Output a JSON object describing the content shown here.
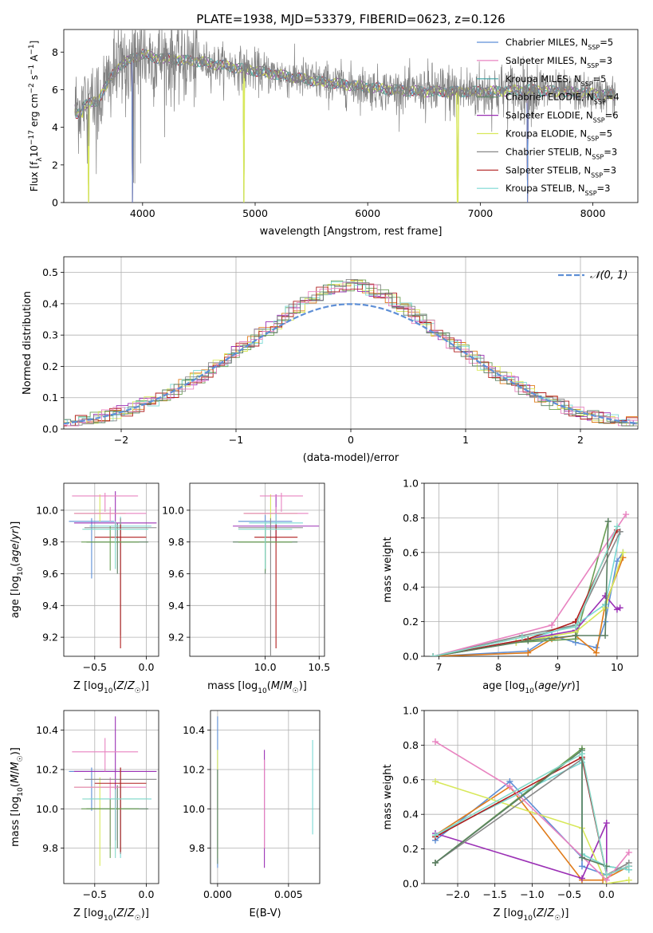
{
  "figure": {
    "title": "PLATE=1938, MJD=53379, FIBERID=0623, z=0.126"
  },
  "colors": {
    "series": [
      "#5e8fd6",
      "#e07b1a",
      "#6b9f55",
      "#9b30b5",
      "#d8e85a",
      "#7ad9d4",
      "#888888",
      "#b01e1e",
      "#e883c0",
      "#5a7f62",
      "#86d9c9"
    ],
    "grid": "#b0b0b0",
    "normal_curve": "#5e8fd6"
  },
  "chart_data": [
    {
      "id": "spectrum",
      "type": "line",
      "xlabel": "wavelength [Angstrom, rest frame]",
      "ylabel": "Flux [f_λ 10^-17 erg cm^-2 s^-1 A^-1]",
      "xlim": [
        3300,
        8400
      ],
      "ylim": [
        0,
        9.2
      ],
      "xticks": [
        4000,
        5000,
        6000,
        7000,
        8000
      ],
      "yticks": [
        0,
        2,
        4,
        6,
        8
      ],
      "grid": false,
      "legend_position": "top-right",
      "continuum": {
        "x": [
          3400,
          3500,
          3600,
          3700,
          3800,
          3900,
          4000,
          4100,
          4300,
          4500,
          4700,
          5000,
          5300,
          5600,
          5900,
          6200,
          6500,
          6800,
          7100,
          7400,
          7700,
          8000,
          8200
        ],
        "y": [
          5.0,
          5.2,
          5.4,
          6.5,
          7.3,
          7.6,
          7.9,
          7.7,
          7.6,
          7.5,
          7.3,
          7.0,
          6.7,
          6.4,
          6.2,
          6.0,
          5.9,
          5.9,
          5.9,
          6.0,
          5.9,
          5.8,
          5.7
        ]
      },
      "dips": [
        {
          "x": 3520,
          "y": 0
        },
        {
          "x": 3910,
          "y": 0
        },
        {
          "x": 4900,
          "y": 0
        },
        {
          "x": 6800,
          "y": 0
        },
        {
          "x": 7420,
          "y": 0
        }
      ],
      "legend": [
        {
          "prefix": "Chabrier MILES, N",
          "sub": "SSP",
          "suffix": "=5"
        },
        {
          "prefix": "Salpeter MILES, N",
          "sub": "SSP",
          "suffix": "=3"
        },
        {
          "prefix": "Kroupa MILES, N",
          "sub": "SSP",
          "suffix": "=5"
        },
        {
          "prefix": "Chabrier ELODIE, N",
          "sub": "SSP",
          "suffix": "=4"
        },
        {
          "prefix": "Salpeter ELODIE, N",
          "sub": "SSP",
          "suffix": "=6"
        },
        {
          "prefix": "Kroupa ELODIE, N",
          "sub": "SSP",
          "suffix": "=5"
        },
        {
          "prefix": "Chabrier STELIB, N",
          "sub": "SSP",
          "suffix": "=3"
        },
        {
          "prefix": "Salpeter STELIB, N",
          "sub": "SSP",
          "suffix": "=3"
        },
        {
          "prefix": "Kroupa STELIB, N",
          "sub": "SSP",
          "suffix": "=3"
        }
      ]
    },
    {
      "id": "residuals",
      "type": "histogram",
      "xlabel": "(data-model)/error",
      "ylabel": "Normed distribution",
      "xlim": [
        -2.5,
        2.5
      ],
      "ylim": [
        0,
        0.55
      ],
      "xticks": [
        -2,
        -1,
        0,
        1,
        2
      ],
      "yticks": [
        0.0,
        0.1,
        0.2,
        0.3,
        0.4,
        0.5
      ],
      "grid": true,
      "legend_position": "top-right",
      "legend": [
        {
          "label": "𝒩(0, 1)"
        }
      ],
      "bin_width": 0.1
    },
    {
      "id": "age-vs-Z",
      "type": "errorbar",
      "xlabel": "Z [log10(Z/Z☉)]",
      "ylabel": "age [log10(age/yr)]",
      "xlim": [
        -0.8,
        0.12
      ],
      "ylim": [
        9.08,
        10.17
      ],
      "xticks": [
        -0.5,
        0.0
      ],
      "yticks": [
        9.2,
        9.4,
        9.6,
        9.8,
        10.0
      ],
      "grid": true,
      "points": [
        {
          "x": -0.53,
          "y": 9.93,
          "xerr": 0.22,
          "yerr_lo": 0.36,
          "yerr_hi": 0.02
        },
        {
          "x": -0.45,
          "y": 9.98,
          "xerr": 0.25,
          "yerr_lo": 0.05,
          "yerr_hi": 0.12
        },
        {
          "x": -0.28,
          "y": 9.8,
          "xerr": 0.3,
          "yerr_lo": 0.2,
          "yerr_hi": 0.12
        },
        {
          "x": -0.3,
          "y": 9.92,
          "xerr": 0.4,
          "yerr_lo": 0.1,
          "yerr_hi": 0.2
        },
        {
          "x": -0.35,
          "y": 9.98,
          "xerr": 0.35,
          "yerr_lo": 0.05,
          "yerr_hi": 0.04
        },
        {
          "x": -0.25,
          "y": 9.9,
          "xerr": 0.3,
          "yerr_lo": 0.05,
          "yerr_hi": 0.06
        },
        {
          "x": -0.25,
          "y": 9.89,
          "xerr": 0.35,
          "yerr_lo": 0.68,
          "yerr_hi": 0.06
        },
        {
          "x": -0.25,
          "y": 9.83,
          "xerr": 0.25,
          "yerr_lo": 0.7,
          "yerr_hi": 0.08
        },
        {
          "x": -0.4,
          "y": 10.09,
          "xerr": 0.32,
          "yerr_lo": 0.1,
          "yerr_hi": 0.02
        },
        {
          "x": -0.35,
          "y": 9.8,
          "xerr": 0.28,
          "yerr_lo": 0.18,
          "yerr_hi": 0.1
        },
        {
          "x": -0.3,
          "y": 9.88,
          "xerr": 0.32,
          "yerr_lo": 0.25,
          "yerr_hi": 0.05
        }
      ]
    },
    {
      "id": "age-vs-mass",
      "type": "errorbar",
      "xlabel": "mass [log10(M/M☉)]",
      "ylabel": "",
      "xlim": [
        9.3,
        10.55
      ],
      "ylim": [
        9.08,
        10.17
      ],
      "xticks": [
        10.0,
        10.5
      ],
      "yticks": [
        9.2,
        9.4,
        9.6,
        9.8,
        10.0
      ],
      "grid": true,
      "points": [
        {
          "x": 10.0,
          "y": 9.93,
          "xerr": 0.25,
          "yerr_lo": 0.1,
          "yerr_hi": 0.04
        },
        {
          "x": 10.05,
          "y": 9.98,
          "xerr": 0.25,
          "yerr_lo": 0.05,
          "yerr_hi": 0.12
        },
        {
          "x": 10.0,
          "y": 9.8,
          "xerr": 0.3,
          "yerr_lo": 0.2,
          "yerr_hi": 0.12
        },
        {
          "x": 10.1,
          "y": 9.9,
          "xerr": 0.4,
          "yerr_lo": 0.1,
          "yerr_hi": 0.2
        },
        {
          "x": 10.1,
          "y": 9.98,
          "xerr": 0.3,
          "yerr_lo": 0.05,
          "yerr_hi": 0.04
        },
        {
          "x": 10.1,
          "y": 9.92,
          "xerr": 0.25,
          "yerr_lo": 0.05,
          "yerr_hi": 0.06
        },
        {
          "x": 10.05,
          "y": 9.89,
          "xerr": 0.3,
          "yerr_lo": 0.82,
          "yerr_hi": 0.06
        },
        {
          "x": 10.1,
          "y": 9.83,
          "xerr": 0.2,
          "yerr_lo": 0.7,
          "yerr_hi": 0.08
        },
        {
          "x": 10.15,
          "y": 10.09,
          "xerr": 0.2,
          "yerr_lo": 0.1,
          "yerr_hi": 0.02
        },
        {
          "x": 10.0,
          "y": 9.8,
          "xerr": 0.25,
          "yerr_lo": 0.18,
          "yerr_hi": 0.1
        },
        {
          "x": 10.0,
          "y": 9.88,
          "xerr": 0.25,
          "yerr_lo": 0.25,
          "yerr_hi": 0.05
        }
      ]
    },
    {
      "id": "mass-weight-vs-age",
      "type": "line",
      "xlabel": "age [log10(age/yr)]",
      "ylabel": "mass weight",
      "xlim": [
        6.75,
        10.35
      ],
      "ylim": [
        0,
        1.0
      ],
      "xticks": [
        7,
        8,
        9,
        10
      ],
      "yticks": [
        0.0,
        0.2,
        0.4,
        0.6,
        0.8,
        1.0
      ],
      "grid": true,
      "series": [
        {
          "x": [
            6.9,
            8.5,
            8.9,
            9.3,
            9.65,
            9.8,
            10.0,
            10.1
          ],
          "y": [
            0.0,
            0.03,
            0.12,
            0.08,
            0.05,
            0.2,
            0.55,
            0.6
          ]
        },
        {
          "x": [
            6.9,
            8.5,
            8.9,
            9.3,
            9.65,
            9.8,
            10.1
          ],
          "y": [
            0.0,
            0.02,
            0.1,
            0.12,
            0.02,
            0.3,
            0.57
          ]
        },
        {
          "x": [
            6.9,
            8.3,
            9.3,
            9.85
          ],
          "y": [
            0.0,
            0.08,
            0.1,
            0.78
          ]
        },
        {
          "x": [
            6.9,
            8.5,
            9.3,
            9.8,
            10.0,
            10.05
          ],
          "y": [
            0.0,
            0.1,
            0.15,
            0.35,
            0.27,
            0.28
          ]
        },
        {
          "x": [
            6.9,
            8.3,
            9.3,
            9.8,
            10.1
          ],
          "y": [
            0.0,
            0.08,
            0.14,
            0.28,
            0.6
          ]
        },
        {
          "x": [
            6.9,
            8.5,
            9.3,
            9.8,
            10.05
          ],
          "y": [
            0.0,
            0.1,
            0.18,
            0.3,
            0.72
          ]
        },
        {
          "x": [
            6.9,
            8.4,
            9.3,
            10.05
          ],
          "y": [
            0.0,
            0.12,
            0.18,
            0.72
          ]
        },
        {
          "x": [
            6.9,
            8.5,
            9.3,
            10.0
          ],
          "y": [
            0.0,
            0.1,
            0.2,
            0.73
          ]
        },
        {
          "x": [
            6.9,
            8.9,
            10.15
          ],
          "y": [
            0.0,
            0.18,
            0.82
          ]
        },
        {
          "x": [
            6.9,
            8.5,
            9.3,
            9.8,
            9.85
          ],
          "y": [
            0.0,
            0.09,
            0.12,
            0.12,
            0.78
          ]
        },
        {
          "x": [
            6.9,
            8.4,
            9.3,
            10.0
          ],
          "y": [
            0.0,
            0.11,
            0.17,
            0.75
          ]
        }
      ]
    },
    {
      "id": "mass-vs-Z",
      "type": "errorbar",
      "xlabel": "Z [log10(Z/Z☉)]",
      "ylabel": "mass [log10(M/M☉)]",
      "xlim": [
        -0.8,
        0.12
      ],
      "ylim": [
        9.62,
        10.5
      ],
      "xticks": [
        -0.5,
        0.0
      ],
      "yticks": [
        9.8,
        10.0,
        10.2,
        10.4
      ],
      "grid": true,
      "points": [
        {
          "x": -0.53,
          "y": 10.19,
          "xerr": 0.22,
          "yerr_lo": 0.2,
          "yerr_hi": 0.02
        },
        {
          "x": -0.45,
          "y": 10.11,
          "xerr": 0.25,
          "yerr_lo": 0.4,
          "yerr_hi": 0.05
        },
        {
          "x": -0.28,
          "y": 10.0,
          "xerr": 0.3,
          "yerr_lo": 0.2,
          "yerr_hi": 0.12
        },
        {
          "x": -0.3,
          "y": 10.19,
          "xerr": 0.4,
          "yerr_lo": 0.35,
          "yerr_hi": 0.28
        },
        {
          "x": -0.35,
          "y": 10.11,
          "xerr": 0.35,
          "yerr_lo": 0.3,
          "yerr_hi": 0.05
        },
        {
          "x": -0.25,
          "y": 10.05,
          "xerr": 0.3,
          "yerr_lo": 0.3,
          "yerr_hi": 0.06
        },
        {
          "x": -0.25,
          "y": 10.15,
          "xerr": 0.35,
          "yerr_lo": 0.38,
          "yerr_hi": 0.06
        },
        {
          "x": -0.25,
          "y": 10.13,
          "xerr": 0.25,
          "yerr_lo": 0.35,
          "yerr_hi": 0.08
        },
        {
          "x": -0.4,
          "y": 10.29,
          "xerr": 0.32,
          "yerr_lo": 0.1,
          "yerr_hi": 0.07
        },
        {
          "x": -0.35,
          "y": 10.0,
          "xerr": 0.28,
          "yerr_lo": 0.25,
          "yerr_hi": 0.05
        },
        {
          "x": -0.3,
          "y": 10.05,
          "xerr": 0.32,
          "yerr_lo": 0.3,
          "yerr_hi": 0.05
        }
      ]
    },
    {
      "id": "mass-vs-ebv",
      "type": "errorbar",
      "xlabel": "E(B-V)",
      "ylabel": "",
      "xlim": [
        -0.0005,
        0.0072
      ],
      "ylim": [
        9.62,
        10.5
      ],
      "xticks": [
        0.0,
        0.005
      ],
      "xtick_labels": [
        "0.000",
        "0.005"
      ],
      "yticks": [
        9.8,
        10.0,
        10.2,
        10.4
      ],
      "grid": true,
      "points": [
        {
          "x": 0.0,
          "y": 10.0,
          "xerr": 0,
          "yerr_lo": 0.3,
          "yerr_hi": 0.47
        },
        {
          "x": 0.0,
          "y": 10.0,
          "xerr": 0,
          "yerr_lo": 0.25,
          "yerr_hi": 0.3
        },
        {
          "x": 0.0,
          "y": 10.0,
          "xerr": 0,
          "yerr_lo": 0.28,
          "yerr_hi": 0.2
        },
        {
          "x": 0.0033,
          "y": 10.0,
          "xerr": 0,
          "yerr_lo": 0.3,
          "yerr_hi": 0.3
        },
        {
          "x": 0.0033,
          "y": 10.0,
          "xerr": 0,
          "yerr_lo": 0.2,
          "yerr_hi": 0.25
        },
        {
          "x": 0.0067,
          "y": 10.1,
          "xerr": 0,
          "yerr_lo": 0.23,
          "yerr_hi": 0.25
        }
      ]
    },
    {
      "id": "mass-weight-vs-Z",
      "type": "line",
      "xlabel": "Z [log10(Z/Z☉)]",
      "ylabel": "mass weight",
      "xlim": [
        -2.45,
        0.42
      ],
      "ylim": [
        0,
        1.0
      ],
      "xticks": [
        -2.0,
        -1.5,
        -1.0,
        -0.5,
        0.0
      ],
      "yticks": [
        0.0,
        0.2,
        0.4,
        0.6,
        0.8,
        1.0
      ],
      "grid": true,
      "series": [
        {
          "x": [
            -2.3,
            -1.3,
            -0.33,
            -0.33,
            0.0,
            0.3
          ],
          "y": [
            0.25,
            0.59,
            0.15,
            0.1,
            0.05,
            0.1
          ]
        },
        {
          "x": [
            -2.3,
            -1.3,
            -0.33,
            -0.05,
            0.3
          ],
          "y": [
            0.28,
            0.56,
            0.02,
            0.02,
            0.1
          ]
        },
        {
          "x": [
            -2.3,
            -0.33,
            -0.33,
            0.0,
            0.3
          ],
          "y": [
            0.12,
            0.78,
            0.17,
            0.1,
            0.08
          ]
        },
        {
          "x": [
            -2.3,
            -0.33,
            0.0,
            0.0,
            0.3
          ],
          "y": [
            0.29,
            0.03,
            0.35,
            0.05,
            0.1
          ]
        },
        {
          "x": [
            -2.3,
            -0.33,
            0.0,
            0.3
          ],
          "y": [
            0.59,
            0.32,
            0.0,
            0.02
          ]
        },
        {
          "x": [
            -2.3,
            -0.33,
            -0.33,
            0.0,
            0.3
          ],
          "y": [
            0.28,
            0.7,
            0.17,
            0.1,
            0.08
          ]
        },
        {
          "x": [
            -2.3,
            -0.33,
            0.0,
            0.3
          ],
          "y": [
            0.12,
            0.72,
            0.05,
            0.12
          ]
        },
        {
          "x": [
            -2.3,
            -0.33,
            0.0,
            0.3
          ],
          "y": [
            0.27,
            0.73,
            0.05,
            0.1
          ]
        },
        {
          "x": [
            -2.3,
            -1.3,
            0.0,
            0.3
          ],
          "y": [
            0.82,
            0.56,
            0.02,
            0.18
          ]
        },
        {
          "x": [
            -2.3,
            -0.33,
            -0.33,
            0.0
          ],
          "y": [
            0.12,
            0.77,
            0.15,
            0.1
          ]
        },
        {
          "x": [
            -2.3,
            -0.33,
            0.0,
            0.3
          ],
          "y": [
            0.28,
            0.75,
            0.05,
            0.1
          ]
        }
      ]
    }
  ]
}
